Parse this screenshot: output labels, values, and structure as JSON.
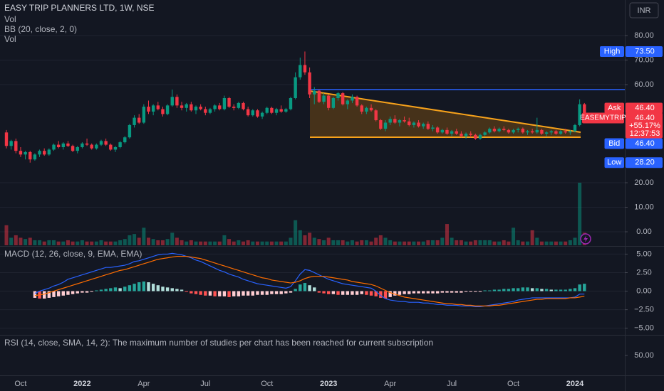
{
  "chart_data": [
    {
      "type": "candlestick",
      "title": "EASY TRIP PLANNERS LTD, 1W, NSE",
      "currency": "INR",
      "indicators": [
        "Vol",
        "BB (20, close, 2, 0)",
        "Vol"
      ],
      "up_color": "#089981",
      "down_color": "#f23645",
      "grid": true,
      "ylim": [
        -5.5,
        94.5
      ],
      "yticks": [
        {
          "value": 80,
          "label": "80.00"
        },
        {
          "value": 70,
          "label": "70.00"
        },
        {
          "value": 60,
          "label": "60.00"
        },
        {
          "value": 20,
          "label": "20.00"
        },
        {
          "value": 10,
          "label": "10.00"
        },
        {
          "value": 0,
          "label": "0.00"
        }
      ],
      "categories": [
        null,
        null,
        null,
        "Oct",
        null,
        null,
        null,
        null,
        null,
        null,
        null,
        null,
        null,
        null,
        null,
        null,
        "2022",
        null,
        null,
        null,
        null,
        null,
        null,
        null,
        null,
        null,
        null,
        null,
        null,
        "Apr",
        null,
        null,
        null,
        null,
        null,
        null,
        null,
        null,
        null,
        null,
        null,
        null,
        "Jul",
        null,
        null,
        null,
        null,
        null,
        null,
        null,
        null,
        null,
        null,
        null,
        null,
        "Oct",
        null,
        null,
        null,
        null,
        null,
        null,
        null,
        null,
        null,
        null,
        null,
        null,
        "2023",
        null,
        null,
        null,
        null,
        null,
        null,
        null,
        null,
        null,
        null,
        null,
        null,
        "Apr",
        null,
        null,
        null,
        null,
        null,
        null,
        null,
        null,
        null,
        null,
        null,
        null,
        "Jul",
        null,
        null,
        null,
        null,
        null,
        null,
        null,
        null,
        null,
        null,
        null,
        null,
        "Oct",
        null,
        null,
        null,
        null,
        null,
        null,
        null,
        null,
        null,
        null,
        null,
        null,
        "2024",
        null,
        null
      ],
      "open": [
        40.5,
        35,
        37,
        33,
        31.5,
        32.5,
        29.5,
        31.5,
        33,
        31.5,
        33.5,
        35.5,
        34.5,
        36,
        35,
        33,
        34.5,
        36,
        35.5,
        34,
        35.5,
        37,
        35.5,
        33.5,
        34.5,
        36.5,
        38.5,
        43.5,
        46.5,
        44.5,
        51,
        49,
        51.5,
        50,
        48,
        51.5,
        55,
        51.5,
        50.5,
        52,
        49.5,
        51,
        50,
        48.5,
        50,
        51.5,
        50,
        54.5,
        51,
        50.5,
        52.5,
        50,
        47.5,
        49.5,
        47,
        48.5,
        50.5,
        48.5,
        50,
        49,
        50,
        54.5,
        63,
        68,
        65,
        56,
        57.5,
        53,
        55.5,
        50.5,
        54.5,
        56.5,
        52,
        53.5,
        55,
        51.5,
        49,
        50.5,
        49.5,
        45.5,
        42,
        44.5,
        46,
        44.5,
        45.5,
        45,
        43.5,
        44.5,
        43,
        44,
        42,
        42.5,
        40.5,
        41.5,
        40,
        41,
        40,
        39,
        40,
        39.5,
        38,
        39.5,
        40.5,
        42,
        41,
        42,
        41.5,
        40.5,
        41.5,
        42,
        40.5,
        41,
        40.5,
        41.5,
        40,
        40.5,
        41,
        40,
        41,
        40.5,
        41,
        43.5,
        52
      ],
      "high": [
        41.5,
        37.5,
        38,
        34.5,
        33,
        33,
        32,
        33.5,
        34,
        34,
        36,
        37,
        36.5,
        37,
        35.5,
        35,
        36.5,
        38,
        36,
        36,
        37.5,
        38,
        36,
        35,
        37,
        39,
        44,
        47.5,
        48,
        52,
        53.5,
        52,
        53,
        51,
        52,
        58,
        56,
        53,
        52.5,
        53,
        51.5,
        52,
        51,
        50.5,
        52,
        52.5,
        55.5,
        55,
        52,
        53,
        53,
        51,
        50,
        50,
        49,
        51,
        51,
        50.5,
        51.5,
        50.5,
        55,
        65,
        71,
        73.5,
        67,
        59,
        58,
        56.5,
        56,
        55,
        57,
        57,
        54,
        56,
        55.5,
        52,
        51,
        52,
        50,
        46,
        45.5,
        47,
        47.5,
        46,
        47,
        46.5,
        45,
        45.5,
        44.5,
        45,
        43.5,
        43,
        42,
        42.5,
        41.5,
        42,
        41,
        40.5,
        41,
        40,
        40,
        41,
        42.5,
        43,
        42.5,
        43,
        42,
        42,
        42.5,
        42.5,
        41.5,
        42,
        46.5,
        42,
        41,
        41.5,
        41.5,
        41.5,
        42,
        41.5,
        44,
        54,
        52.5
      ],
      "low": [
        34,
        33.5,
        32,
        30.5,
        29.5,
        28.2,
        29,
        30.5,
        31,
        31,
        33,
        34,
        33.5,
        34.5,
        32.5,
        32,
        34,
        35,
        33.5,
        33.5,
        35,
        35,
        33,
        32.5,
        34,
        36,
        38,
        42.5,
        44,
        44,
        48,
        47.5,
        49.5,
        47,
        47.5,
        51,
        50.5,
        49.5,
        49,
        49,
        48,
        49.5,
        47.5,
        48,
        49,
        49.5,
        49.5,
        50.5,
        49.5,
        50,
        49.5,
        47,
        47,
        46.5,
        46,
        48,
        48,
        47.5,
        48.5,
        48.5,
        49.5,
        54,
        62,
        64,
        54.5,
        52,
        52.5,
        52,
        49.5,
        50,
        53.5,
        51.5,
        50,
        52.5,
        51,
        48,
        48,
        49,
        45,
        41.5,
        41,
        43.5,
        44,
        43,
        44.5,
        43,
        42.5,
        42.5,
        42,
        41.5,
        41,
        40,
        40,
        39.5,
        39,
        39.5,
        38.5,
        38,
        38.5,
        37.5,
        37.5,
        39,
        40,
        40.5,
        40.5,
        41,
        40,
        40,
        40.5,
        40,
        39.5,
        40,
        40,
        39.5,
        39,
        39.5,
        39.5,
        39.5,
        40,
        39.5,
        40.5,
        43,
        45.5
      ],
      "close": [
        35,
        37,
        33,
        31.5,
        32.5,
        29.5,
        31.5,
        33,
        31.5,
        33.5,
        35.5,
        34.5,
        36,
        35,
        33,
        34.5,
        36,
        35.5,
        34,
        35.5,
        37,
        35.5,
        33.5,
        34.5,
        36.5,
        38.5,
        43.5,
        46.5,
        44.5,
        51,
        49,
        51.5,
        50,
        48,
        51.5,
        55,
        51.5,
        50.5,
        52,
        49.5,
        51,
        50,
        48.5,
        50,
        51.5,
        50,
        54.5,
        51,
        50.5,
        52.5,
        50,
        47.5,
        49.5,
        47,
        48.5,
        50.5,
        48.5,
        50,
        49,
        50,
        54.5,
        63,
        68,
        65,
        56,
        57.5,
        53,
        55.5,
        50.5,
        54.5,
        56.5,
        52,
        53.5,
        55,
        51.5,
        49,
        50.5,
        49.5,
        45.5,
        42,
        44.5,
        46,
        44.5,
        45.5,
        45,
        43.5,
        44.5,
        43,
        44,
        42,
        42.5,
        40.5,
        41.5,
        40,
        41,
        40,
        39,
        40,
        39.5,
        38,
        39.5,
        40.5,
        42,
        41,
        42,
        41.5,
        40.5,
        41.5,
        42,
        40.5,
        41,
        40.5,
        41.5,
        40,
        40.5,
        41,
        40,
        41,
        40.5,
        41,
        43.5,
        52,
        46.4
      ],
      "volume": [
        8,
        3,
        4,
        3,
        2.5,
        3,
        2,
        2,
        1.5,
        2,
        2,
        1.5,
        1.5,
        2,
        1.5,
        1.5,
        2,
        1.5,
        1.5,
        1.5,
        2,
        1.5,
        1.5,
        1.5,
        2,
        2.5,
        4,
        4.5,
        3,
        7,
        3,
        2.5,
        2,
        2,
        2.5,
        5,
        3,
        2,
        1.5,
        2,
        1.5,
        1.5,
        1.5,
        1.5,
        1.5,
        1.5,
        4,
        2.5,
        1.5,
        2,
        1.5,
        2,
        1.5,
        1.5,
        1.5,
        1.5,
        1.5,
        1.5,
        1.5,
        1.5,
        3,
        10,
        6,
        4,
        5,
        3,
        2.5,
        2,
        3,
        2,
        2,
        2,
        1.5,
        2,
        1.5,
        2,
        2,
        1.5,
        3,
        4,
        3,
        2,
        1.5,
        1.5,
        1.5,
        1.5,
        1.5,
        1.5,
        1.5,
        2,
        2,
        2,
        3,
        8.5,
        3,
        2,
        2,
        1.5,
        1.5,
        2,
        2,
        2,
        2,
        1.5,
        1.5,
        2,
        1.5,
        7,
        2,
        1.5,
        1.5,
        6,
        3,
        1.5,
        1.5,
        1.5,
        1.5,
        1.5,
        1.5,
        2,
        3,
        25,
        5
      ],
      "markers": [
        {
          "name": "High",
          "value": 73.5,
          "label": "73.50",
          "color": "#2962ff"
        },
        {
          "name": "Ask",
          "value": 46.4,
          "label": "46.40",
          "color": "#f23645"
        },
        {
          "name": "Bid",
          "value": 46.4,
          "label": "46.40",
          "color": "#2962ff"
        },
        {
          "name": "Low",
          "value": 28.2,
          "label": "28.20",
          "color": "#2962ff"
        }
      ],
      "last": {
        "name": "EASEMYTRIP",
        "value": 46.4,
        "label": "46.40",
        "change": "+55.17%",
        "countdown": "12:37:53",
        "color": "#f23645"
      }
    },
    {
      "type": "macd",
      "title": "MACD (12, 26, close, 9, EMA, EMA)",
      "grid": true,
      "ylim": [
        -5.8,
        6
      ],
      "yticks": [
        {
          "value": 5,
          "label": "5.00"
        },
        {
          "value": 2.5,
          "label": "2.50"
        },
        {
          "value": 0,
          "label": "0.00"
        },
        {
          "value": -2.5,
          "label": "−2.50"
        },
        {
          "value": -5,
          "label": "−5.00"
        }
      ],
      "histogram_colors": {
        "positive_rising": "#26a69a",
        "positive_falling": "#b2dfdb",
        "negative_falling": "#ff5252",
        "negative_rising": "#ffcdd2"
      },
      "histogram": [
        null,
        null,
        null,
        null,
        null,
        null,
        -0.9,
        -1.0,
        -1.0,
        -0.9,
        -0.8,
        -0.7,
        -0.6,
        -0.5,
        -0.4,
        -0.3,
        -0.2,
        -0.2,
        -0.1,
        0.1,
        0.2,
        0.3,
        0.4,
        0.5,
        0.4,
        0.6,
        0.8,
        1.0,
        1.2,
        1.3,
        1.2,
        1.0,
        0.8,
        0.6,
        0.5,
        0.4,
        0.3,
        0.2,
        -0.1,
        -0.3,
        -0.4,
        -0.5,
        -0.6,
        -0.6,
        -0.7,
        -0.7,
        -0.7,
        -0.8,
        -0.7,
        -0.7,
        -0.6,
        -0.6,
        -0.6,
        -0.5,
        -0.5,
        -0.5,
        -0.4,
        -0.4,
        -0.4,
        -0.3,
        -0.2,
        0.3,
        0.9,
        1.1,
        0.8,
        0.5,
        -0.2,
        -0.3,
        -0.4,
        -0.4,
        -0.5,
        -0.5,
        -0.5,
        -0.5,
        -0.5,
        -0.4,
        -0.5,
        -0.6,
        -0.7,
        -0.9,
        -1.0,
        -0.8,
        -0.6,
        -0.5,
        -0.4,
        -0.4,
        -0.3,
        -0.3,
        -0.3,
        -0.3,
        -0.3,
        -0.3,
        -0.2,
        -0.2,
        -0.2,
        -0.2,
        -0.2,
        -0.1,
        -0.1,
        -0.1,
        -0.1,
        0.1,
        0.1,
        0.2,
        0.2,
        0.3,
        0.3,
        0.4,
        0.4,
        0.5,
        0.5,
        0.4,
        0.4,
        0.3,
        0.3,
        0.2,
        0.2,
        0.2,
        0.2,
        0.3,
        0.4,
        0.9,
        1.0
      ],
      "series": [
        {
          "color": "#2962ff",
          "values": [
            null,
            null,
            null,
            null,
            null,
            null,
            -0.3,
            0,
            0.2,
            0.4,
            0.7,
            0.9,
            1.2,
            1.6,
            1.8,
            2.0,
            2.2,
            2.4,
            2.6,
            2.8,
            3.0,
            3.2,
            3.2,
            3.3,
            3.4,
            3.5,
            3.7,
            4.0,
            4.1,
            4.3,
            4.5,
            4.7,
            4.9,
            5.0,
            5.0,
            5.1,
            5.0,
            4.9,
            4.7,
            4.5,
            4.2,
            4.0,
            3.7,
            3.4,
            3.1,
            2.8,
            2.6,
            2.3,
            2.1,
            1.9,
            1.6,
            1.4,
            1.2,
            1.0,
            0.9,
            0.8,
            0.7,
            0.6,
            0.5,
            0.4,
            0.6,
            1.4,
            2.3,
            2.9,
            2.8,
            2.5,
            2.2,
            1.9,
            1.6,
            1.4,
            1.2,
            1.0,
            0.9,
            0.8,
            0.7,
            0.6,
            0.5,
            0.4,
            0,
            -0.6,
            -1.0,
            -1.2,
            -1.3,
            -1.4,
            -1.4,
            -1.5,
            -1.5,
            -1.5,
            -1.6,
            -1.6,
            -1.7,
            -1.8,
            -1.8,
            -1.9,
            -1.9,
            -1.9,
            -2.0,
            -2.0,
            -2.0,
            -2.1,
            -2.1,
            -2.0,
            -1.9,
            -1.8,
            -1.7,
            -1.6,
            -1.5,
            -1.4,
            -1.2,
            -1.1,
            -1.0,
            -0.9,
            -0.9,
            -0.9,
            -0.9,
            -0.9,
            -0.9,
            -0.9,
            -0.9,
            -0.9,
            -0.8,
            -0.4,
            -0.4
          ]
        },
        {
          "color": "#ff6d00",
          "values": [
            null,
            null,
            null,
            null,
            null,
            null,
            -0.6,
            -0.5,
            -0.4,
            -0.2,
            0,
            0.2,
            0.4,
            0.6,
            0.8,
            1.0,
            1.2,
            1.4,
            1.6,
            1.8,
            2.0,
            2.2,
            2.4,
            2.6,
            2.8,
            2.9,
            3.1,
            3.3,
            3.5,
            3.7,
            3.9,
            4.1,
            4.3,
            4.4,
            4.5,
            4.6,
            4.7,
            4.7,
            4.7,
            4.6,
            4.5,
            4.4,
            4.2,
            4.0,
            3.8,
            3.6,
            3.4,
            3.2,
            3.0,
            2.8,
            2.6,
            2.4,
            2.2,
            2.0,
            1.8,
            1.7,
            1.5,
            1.4,
            1.3,
            1.2,
            1.1,
            1.2,
            1.4,
            1.7,
            1.9,
            2.0,
            2.0,
            2.0,
            1.9,
            1.8,
            1.7,
            1.6,
            1.5,
            1.3,
            1.2,
            1.1,
            1.0,
            0.9,
            0.7,
            0.4,
            0.1,
            -0.2,
            -0.4,
            -0.6,
            -0.8,
            -0.9,
            -1.0,
            -1.1,
            -1.2,
            -1.3,
            -1.4,
            -1.5,
            -1.6,
            -1.7,
            -1.7,
            -1.8,
            -1.8,
            -1.9,
            -1.9,
            -2.0,
            -2.0,
            -2.0,
            -2.0,
            -1.9,
            -1.9,
            -1.8,
            -1.7,
            -1.6,
            -1.5,
            -1.4,
            -1.3,
            -1.2,
            -1.1,
            -1.1,
            -1.0,
            -1.0,
            -1.0,
            -1.0,
            -1.0,
            -0.9,
            -0.9,
            -0.8,
            -0.7
          ]
        }
      ]
    },
    {
      "type": "rsi",
      "title": "RSI (14, close, SMA, 14, 2): The maximum number of studies per chart has been reached for current subscription",
      "grid": false,
      "ylim": [
        0,
        100
      ],
      "yticks": [
        {
          "value": 50,
          "label": "50.00"
        }
      ]
    }
  ]
}
